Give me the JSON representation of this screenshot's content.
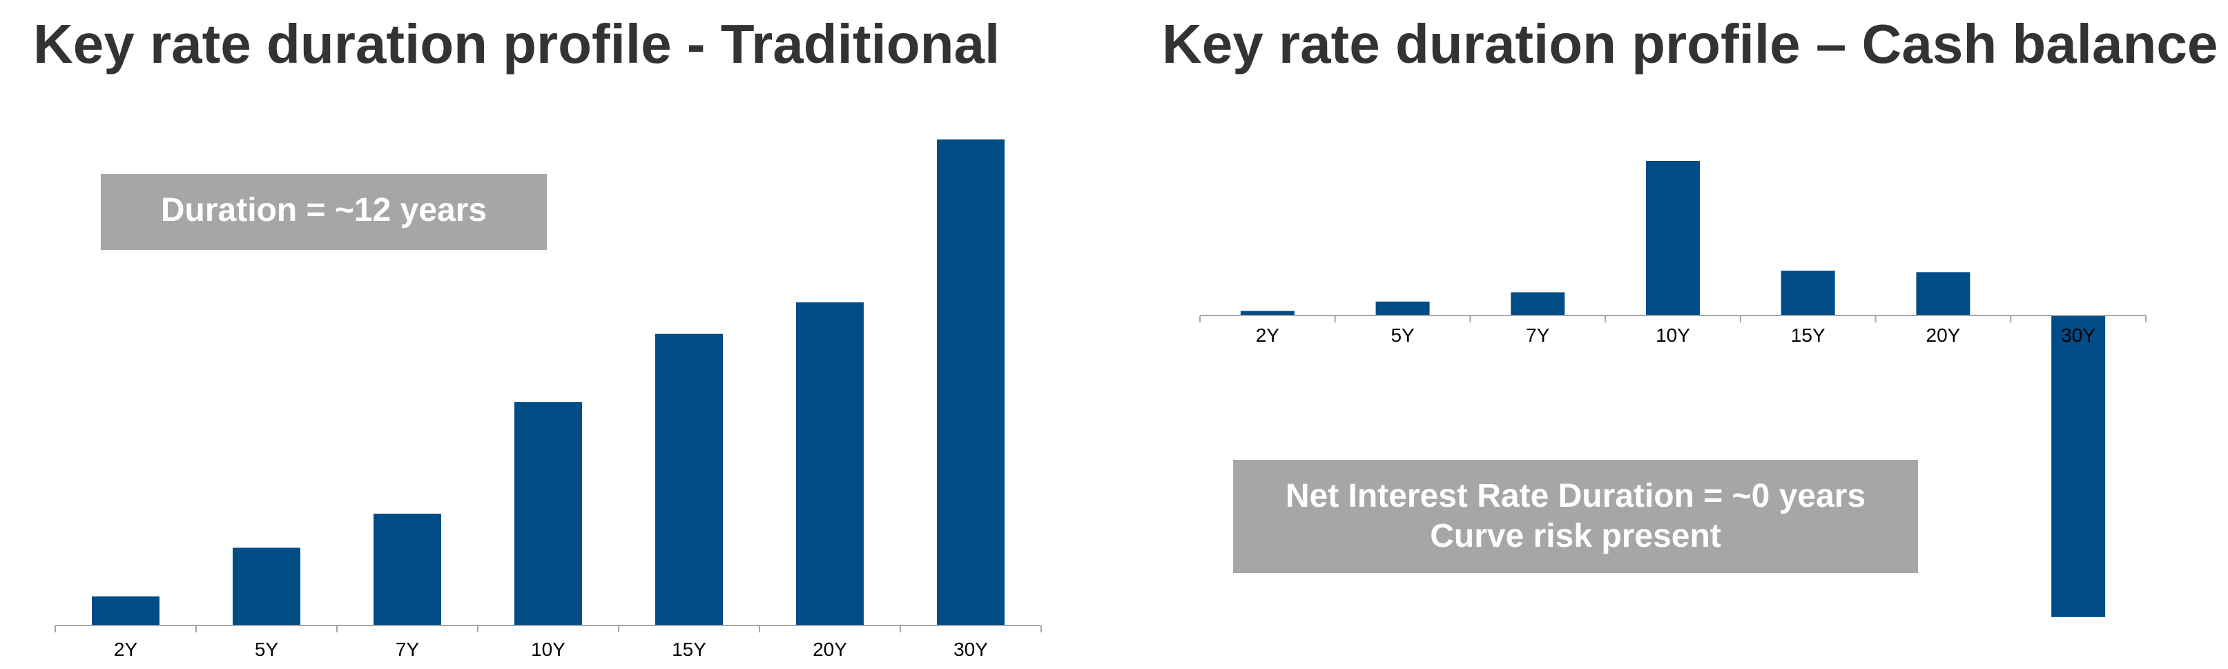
{
  "colors": {
    "bar": "#004c86",
    "callout_bg": "#a6a6a6",
    "title": "#333333",
    "axis": "#a6a6a6"
  },
  "chart_data": [
    {
      "type": "bar",
      "title": "Key rate duration profile - Traditional",
      "categories": [
        "2Y",
        "5Y",
        "7Y",
        "10Y",
        "15Y",
        "20Y",
        "30Y"
      ],
      "values": [
        0.6,
        1.6,
        2.3,
        4.6,
        6.0,
        6.65,
        10.0
      ],
      "ylim": [
        0,
        10
      ],
      "grid": false,
      "annotation": "Duration = ~12 years"
    },
    {
      "type": "bar",
      "title": "Key rate duration profile – Cash balance",
      "categories": [
        "2Y",
        "5Y",
        "7Y",
        "10Y",
        "15Y",
        "20Y",
        "30Y"
      ],
      "values": [
        0.3,
        0.9,
        1.5,
        10.0,
        2.9,
        2.8,
        -19.5
      ],
      "ylim": [
        -20,
        10
      ],
      "grid": false,
      "annotation_lines": [
        "Net Interest Rate Duration = ~0 years",
        "Curve risk present"
      ]
    }
  ]
}
